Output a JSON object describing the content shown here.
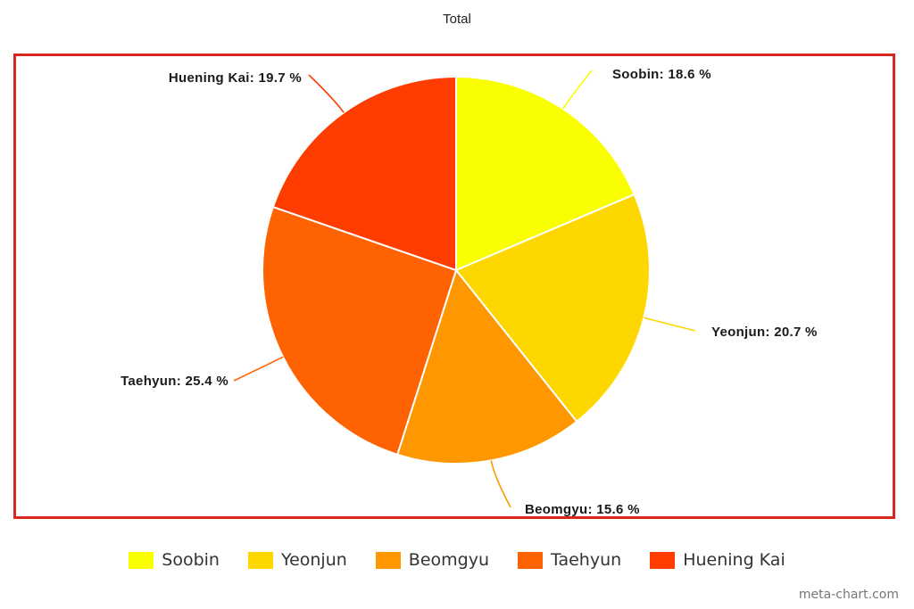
{
  "chart_data": {
    "type": "pie",
    "title": "Total",
    "categories": [
      "Soobin",
      "Yeonjun",
      "Beomgyu",
      "Taehyun",
      "Huening Kai"
    ],
    "values": [
      18.6,
      20.7,
      15.6,
      25.4,
      19.7
    ],
    "unit": "%",
    "colors": [
      "#f9ff00",
      "#ffd700",
      "#ff9700",
      "#ff6200",
      "#ff3d00"
    ],
    "legend_position": "bottom",
    "frame_color": "#d9261c",
    "labels": [
      "Soobin: 18.6 %",
      "Yeonjun: 20.7 %",
      "Beomgyu: 15.6 %",
      "Taehyun: 25.4 %",
      "Huening Kai: 19.7 %"
    ]
  },
  "watermark": "meta-chart.com"
}
